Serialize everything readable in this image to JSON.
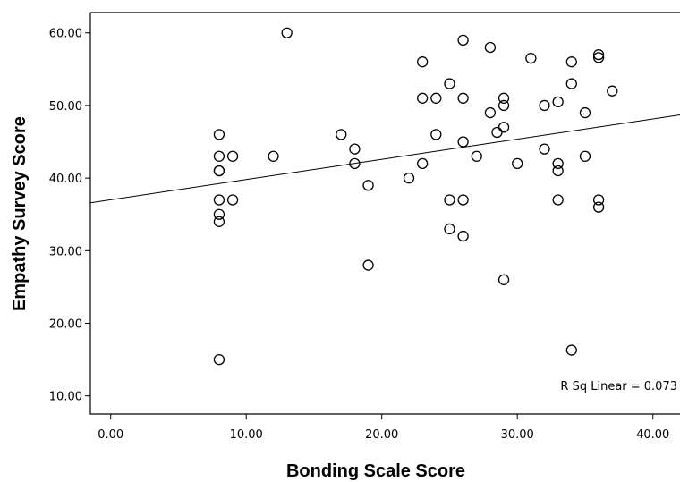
{
  "chart_data": {
    "type": "scatter",
    "xlabel": "Bonding Scale Score",
    "ylabel": "Empathy Survey Score",
    "xlim": [
      -1.5,
      42
    ],
    "ylim": [
      7.5,
      62.8
    ],
    "x_ticks": [
      0,
      10,
      20,
      30,
      40
    ],
    "y_ticks": [
      10,
      20,
      30,
      40,
      50,
      60
    ],
    "x_tick_labels": [
      "0.00",
      "10.00",
      "20.00",
      "30.00",
      "40.00"
    ],
    "y_tick_labels": [
      "10.00",
      "20.00",
      "30.00",
      "40.00",
      "50.00",
      "60.00"
    ],
    "grid": false,
    "annotation": "R Sq Linear = 0.073",
    "fit_line": {
      "x": [
        -1.5,
        42
      ],
      "y": [
        36.6,
        48.7
      ]
    },
    "points": [
      {
        "x": 8,
        "y": 46
      },
      {
        "x": 8,
        "y": 43
      },
      {
        "x": 8,
        "y": 41
      },
      {
        "x": 8,
        "y": 41
      },
      {
        "x": 8,
        "y": 37
      },
      {
        "x": 8,
        "y": 35
      },
      {
        "x": 8,
        "y": 34
      },
      {
        "x": 8,
        "y": 15
      },
      {
        "x": 9,
        "y": 43
      },
      {
        "x": 9,
        "y": 37
      },
      {
        "x": 12,
        "y": 43
      },
      {
        "x": 13,
        "y": 60
      },
      {
        "x": 17,
        "y": 46
      },
      {
        "x": 18,
        "y": 44
      },
      {
        "x": 18,
        "y": 42
      },
      {
        "x": 19,
        "y": 39
      },
      {
        "x": 19,
        "y": 28
      },
      {
        "x": 22,
        "y": 40
      },
      {
        "x": 23,
        "y": 56
      },
      {
        "x": 23,
        "y": 51
      },
      {
        "x": 23,
        "y": 42
      },
      {
        "x": 24,
        "y": 51
      },
      {
        "x": 24,
        "y": 46
      },
      {
        "x": 25,
        "y": 53
      },
      {
        "x": 25,
        "y": 37
      },
      {
        "x": 25,
        "y": 33
      },
      {
        "x": 26,
        "y": 59
      },
      {
        "x": 26,
        "y": 51
      },
      {
        "x": 26,
        "y": 45
      },
      {
        "x": 26,
        "y": 37
      },
      {
        "x": 26,
        "y": 32
      },
      {
        "x": 27,
        "y": 43
      },
      {
        "x": 28,
        "y": 58
      },
      {
        "x": 28,
        "y": 49
      },
      {
        "x": 28.5,
        "y": 46.3
      },
      {
        "x": 29,
        "y": 51
      },
      {
        "x": 29,
        "y": 50
      },
      {
        "x": 29,
        "y": 47
      },
      {
        "x": 29,
        "y": 26
      },
      {
        "x": 30,
        "y": 42
      },
      {
        "x": 31,
        "y": 56.5
      },
      {
        "x": 32,
        "y": 50
      },
      {
        "x": 32,
        "y": 44
      },
      {
        "x": 33,
        "y": 50.5
      },
      {
        "x": 33,
        "y": 42
      },
      {
        "x": 33,
        "y": 41
      },
      {
        "x": 33,
        "y": 37
      },
      {
        "x": 34,
        "y": 56
      },
      {
        "x": 34,
        "y": 53
      },
      {
        "x": 34,
        "y": 16.3
      },
      {
        "x": 35,
        "y": 49
      },
      {
        "x": 35,
        "y": 43
      },
      {
        "x": 36,
        "y": 57
      },
      {
        "x": 36,
        "y": 56.6
      },
      {
        "x": 36,
        "y": 37
      },
      {
        "x": 36,
        "y": 36
      },
      {
        "x": 37,
        "y": 52
      }
    ]
  }
}
